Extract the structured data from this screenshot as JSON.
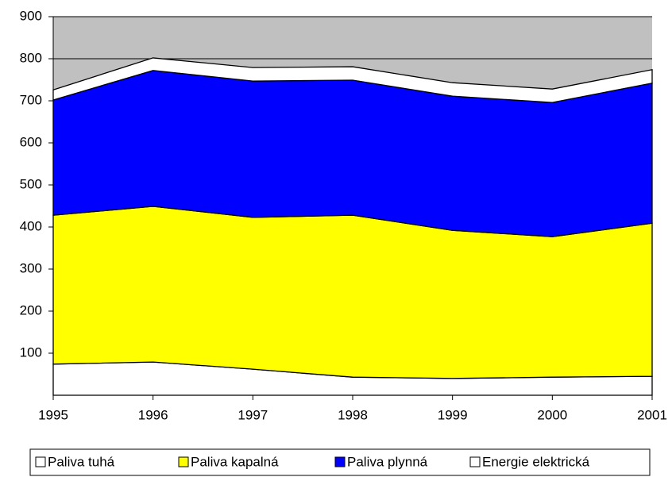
{
  "chart_data": {
    "type": "stacked_area",
    "categories": [
      "1995",
      "1996",
      "1997",
      "1998",
      "1999",
      "2000",
      "2001"
    ],
    "series": [
      {
        "name": "Paliva tuhá",
        "color": "#ffffff",
        "values": [
          74,
          79,
          62,
          43,
          40,
          43,
          45
        ]
      },
      {
        "name": "Paliva kapalná",
        "color": "#ffff00",
        "values": [
          354,
          370,
          361,
          385,
          352,
          334,
          364
        ]
      },
      {
        "name": "Paliva plynná",
        "color": "#0000ff",
        "values": [
          274,
          323,
          324,
          321,
          319,
          319,
          333
        ]
      },
      {
        "name": "Energie elektrická",
        "color": "#ffffff",
        "values": [
          24,
          30,
          32,
          32,
          32,
          32,
          32
        ]
      }
    ],
    "ylim": [
      0,
      900
    ],
    "yticks": [
      100,
      200,
      300,
      400,
      500,
      600,
      700,
      800,
      900
    ],
    "grid": true,
    "plot_background": "#c0c0c0",
    "legend": "bottom"
  }
}
